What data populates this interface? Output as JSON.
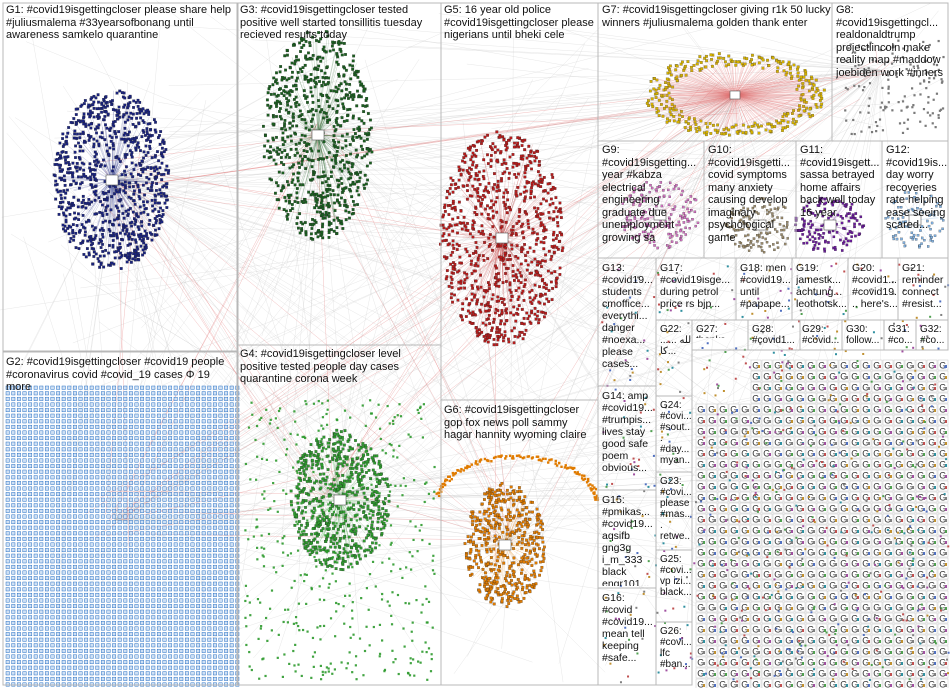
{
  "colors": {
    "g1": "#1a237e",
    "g2": "#1565c0",
    "g3": "#1b5e20",
    "g4": "#2e9a2e",
    "g5": "#b71c1c",
    "g6": "#e07b00",
    "g7": "#d4b000",
    "g8": "#7a7a7a",
    "g9": "#d070c0",
    "g10": "#9a8a6a",
    "g11": "#6a1b9a",
    "g12": "#7fb0e0",
    "edge": "#c8c8c8",
    "hub_edge": "#e07070",
    "border": "#b8b8b8"
  },
  "groups": [
    {
      "id": "G1",
      "label": "G1: #covid19isgettingcloser please share help #juliusmalema #33yearsofbonang until awareness samkelo quarantine"
    },
    {
      "id": "G2",
      "label": "G2: #covid19isgettingcloser #covid19 people #coronavirus covid #covid_19 cases Φ 19 more"
    },
    {
      "id": "G3",
      "label": "G3: #covid19isgettingcloser tested positive well started tonsillitis tuesday recieved results today"
    },
    {
      "id": "G4",
      "label": "G4: #covid19isgettingcloser level positive tested people day cases quarantine corona week"
    },
    {
      "id": "G5",
      "label": "G5: 16 year old police #covid19isgettingcloser please nigerians until bheki cele"
    },
    {
      "id": "G6",
      "label": "G6: #covid19isgettingcloser gop fox news poll sammy hagar hannity wyoming claire"
    },
    {
      "id": "G7",
      "label": "G7: #covid19isgettingcloser giving r1k 50 lucky winners #juliusmalema golden thank enter"
    },
    {
      "id": "G8",
      "label": "G8: #covid19isgettingcl... realdonaldtrump projectlincoln make reality map #maddow joebiden work #inners"
    },
    {
      "id": "G9",
      "label": "G9: #covid19isgetting... year #kabza electrical engineering graduate due unemployment growing sa"
    },
    {
      "id": "G10",
      "label": "G10: #covid19isgetti... covid symptoms many anxiety causing develop imaginary psychological game"
    },
    {
      "id": "G11",
      "label": "G11: #covid19isgett... sassa betrayed home affairs back well today 16 year"
    },
    {
      "id": "G12",
      "label": "G12: #covid19is... day worry recoveries rate helping ease seeing scared..."
    },
    {
      "id": "G13",
      "label": "G13: #covid19... students cmoffice... everythi... danger #noexa... please cases..."
    },
    {
      "id": "G14",
      "label": "G14: amp #covid19... #trumpis... lives stay good safe poem obvious..."
    },
    {
      "id": "G15",
      "label": "G15: #pmikas... #covid19... aqsifb gng3g i_m_333 black engr101..."
    },
    {
      "id": "G16",
      "label": "G16: #covid #covid19... mean tell keeping #safe..."
    },
    {
      "id": "G17",
      "label": "G17: #covid19isge... during petrol price rs bjp..."
    },
    {
      "id": "G18",
      "label": "G18: men #covid19... until #papape..."
    },
    {
      "id": "G19",
      "label": "G19: jamestk... achtung... leothotsk..."
    },
    {
      "id": "G20",
      "label": "G20: #covid1... #covid19... here's..."
    },
    {
      "id": "G21",
      "label": "G21: reminder connect #resist..."
    },
    {
      "id": "G22",
      "label": "G22: ...لله ... كا..."
    },
    {
      "id": "G23",
      "label": "G23: #covi... please #mas... retwe..."
    },
    {
      "id": "G24",
      "label": "G24: #covi... #sout... #day... myan..."
    },
    {
      "id": "G25",
      "label": "G25: #covi... vp izi... black..."
    },
    {
      "id": "G26",
      "label": "G26: #covi... lfc #ban..."
    },
    {
      "id": "G27",
      "label": "G27: thanks..."
    },
    {
      "id": "G28",
      "label": "G28: #covid1..."
    },
    {
      "id": "G29",
      "label": "G29: #covid..."
    },
    {
      "id": "G30",
      "label": "G30: follow..."
    },
    {
      "id": "G31",
      "label": "G31: #co..."
    },
    {
      "id": "G32",
      "label": "G32: #co..."
    }
  ],
  "small_node_glyph": "G"
}
